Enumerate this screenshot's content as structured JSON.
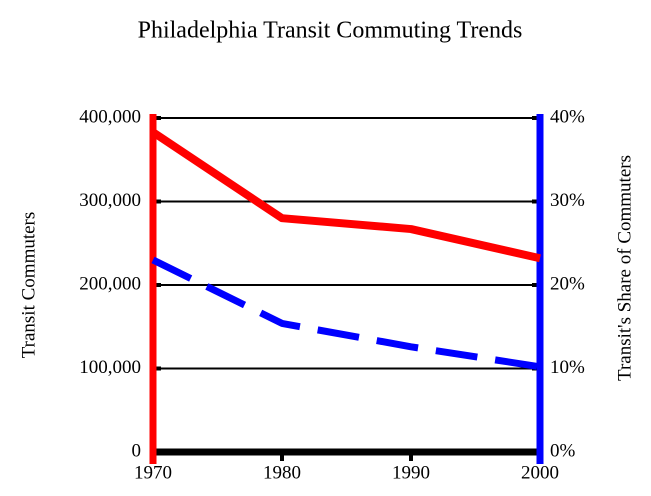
{
  "chart_data": {
    "type": "line",
    "title": "Philadelphia  Transit Commuting Trends",
    "y_label": "Transit Commuters",
    "y2_label": "Transit's Share of Commuters",
    "x": [
      1970,
      1980,
      1990,
      2000
    ],
    "xlim": [
      1970,
      2000
    ],
    "xticks": [
      1970,
      1980,
      1990,
      2000
    ],
    "ylim": [
      0,
      400000
    ],
    "yticks": [
      0,
      {
        "value": 100000,
        "label": "100,000"
      },
      {
        "value": 200000,
        "label": "200,000"
      },
      {
        "value": 300000,
        "label": "300,000"
      },
      {
        "value": 400000,
        "label": "400,000"
      }
    ],
    "y2lim": [
      0,
      40
    ],
    "y2ticks": [
      {
        "value": 0,
        "label": "0%"
      },
      {
        "value": 10,
        "label": "10%"
      },
      {
        "value": 20,
        "label": "20%"
      },
      {
        "value": 30,
        "label": "30%"
      },
      {
        "value": 40,
        "label": "40%"
      }
    ],
    "grid": true,
    "series": [
      {
        "color": "#ff0000",
        "values": [
          383000,
          280000,
          267000,
          232000
        ]
      },
      {
        "color": "#0000ff",
        "values": [
          23,
          15.4,
          12.6,
          10.2
        ],
        "axis": "y2",
        "dashed": true
      }
    ]
  }
}
